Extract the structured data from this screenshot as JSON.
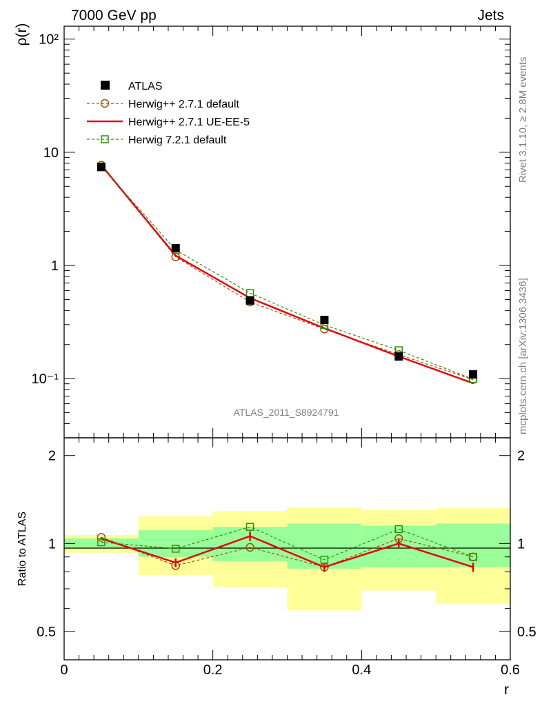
{
  "header": {
    "left": "7000 GeV pp",
    "right": "Jets"
  },
  "side_labels": {
    "rivet": "Rivet 3.1.10, ≥ 2.8M events",
    "mcplots": "mcplots.cern.ch [arXiv:1306.3436]"
  },
  "watermark": "ATLAS_2011_S8924791",
  "chart_data": [
    {
      "type": "scatter",
      "panel": "main",
      "ylabel": "ρ(r)",
      "xlim": [
        0,
        0.6
      ],
      "ylim": [
        0.03,
        130
      ],
      "yscale": "log",
      "yticks": [
        0.1,
        1,
        10,
        100
      ],
      "ytick_labels": [
        "10⁻¹",
        "1",
        "10",
        "10²"
      ],
      "legend_position": "top-left",
      "x": [
        0.05,
        0.15,
        0.25,
        0.35,
        0.45,
        0.55
      ],
      "series": [
        {
          "name": "ATLAS",
          "style": "data",
          "color": "#000000",
          "values": [
            7.4,
            1.42,
            0.49,
            0.33,
            0.157,
            0.109
          ]
        },
        {
          "name": "Herwig++ 2.7.1 default",
          "style": "dashed-circle",
          "color": "#a05000",
          "values": [
            7.7,
            1.19,
            0.475,
            0.274,
            0.163,
            0.098
          ]
        },
        {
          "name": "Herwig++ 2.7.1 UE-EE-5",
          "style": "solid-line",
          "color": "#e8000b",
          "values": [
            7.7,
            1.22,
            0.515,
            0.279,
            0.157,
            0.091
          ]
        },
        {
          "name": "Herwig 7.2.1 default",
          "style": "dashed-square",
          "color": "#2f8f00",
          "values": [
            7.5,
            1.37,
            0.57,
            0.298,
            0.178,
            0.099
          ]
        }
      ]
    },
    {
      "type": "scatter",
      "panel": "ratio",
      "xlabel": "r",
      "ylabel": "Ratio to ATLAS",
      "xlim": [
        0,
        0.6
      ],
      "ylim": [
        0.4,
        2.3
      ],
      "yscale": "log",
      "yticks": [
        0.5,
        1,
        2
      ],
      "ytick_labels": [
        "0.5",
        "1",
        "2"
      ],
      "xticks": [
        0,
        0.2,
        0.4,
        0.6
      ],
      "xtick_labels": [
        "0",
        "0.2",
        "0.4",
        "0.6"
      ],
      "bin_edges": [
        0.0,
        0.1,
        0.2,
        0.3,
        0.4,
        0.5,
        0.6
      ],
      "band_stat": {
        "color": "#99ff99",
        "lo": [
          0.96,
          0.9,
          0.87,
          0.82,
          0.83,
          0.83
        ],
        "hi": [
          1.04,
          1.11,
          1.14,
          1.17,
          1.15,
          1.17
        ]
      },
      "band_total": {
        "color": "#ffff99",
        "lo": [
          0.93,
          0.78,
          0.71,
          0.59,
          0.69,
          0.62
        ],
        "hi": [
          1.07,
          1.24,
          1.29,
          1.33,
          1.3,
          1.32
        ]
      },
      "x": [
        0.05,
        0.15,
        0.25,
        0.35,
        0.45,
        0.55
      ],
      "series": [
        {
          "name": "Herwig++ 2.7.1 default",
          "style": "dashed-circle",
          "color": "#a05000",
          "values": [
            1.05,
            0.84,
            0.97,
            0.83,
            1.04,
            0.9
          ]
        },
        {
          "name": "Herwig++ 2.7.1 UE-EE-5",
          "style": "solid-line",
          "color": "#e8000b",
          "values": [
            1.04,
            0.86,
            1.06,
            0.83,
            1.0,
            0.83
          ],
          "err": [
            0.01,
            0.03,
            0.04,
            0.03,
            0.04,
            0.03
          ]
        },
        {
          "name": "Herwig 7.2.1 default",
          "style": "dashed-square",
          "color": "#2f8f00",
          "values": [
            1.01,
            0.96,
            1.14,
            0.88,
            1.12,
            0.9
          ]
        }
      ]
    }
  ]
}
